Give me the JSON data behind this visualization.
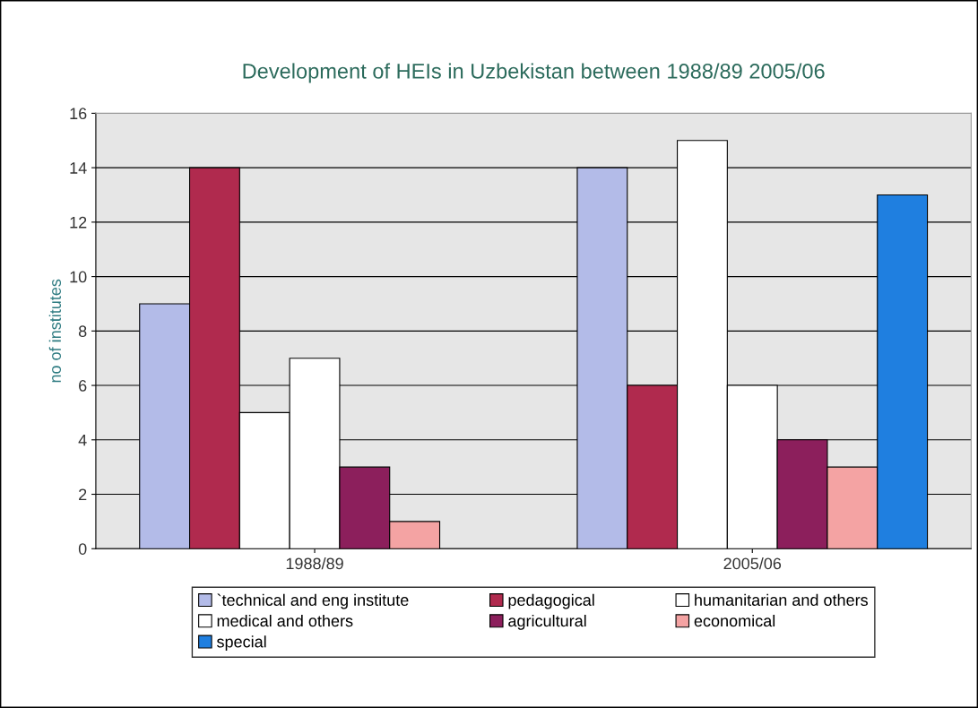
{
  "chart_data": {
    "type": "bar",
    "title": "Development of HEIs in Uzbekistan between 1988/89 2005/06",
    "ylabel": "no of institutes",
    "categories": [
      "1988/89",
      "2005/06"
    ],
    "series": [
      {
        "name": "`technical and eng institute",
        "color": "#b3bbe8",
        "values": [
          9,
          14
        ]
      },
      {
        "name": "pedagogical",
        "color": "#b02a4e",
        "values": [
          14,
          6
        ]
      },
      {
        "name": "humanitarian and others",
        "color": "#ffffff",
        "values": [
          5,
          15
        ]
      },
      {
        "name": "medical and others",
        "color": "#ffffff",
        "values": [
          7,
          6
        ]
      },
      {
        "name": "agricultural",
        "color": "#8c1f5c",
        "values": [
          3,
          4
        ]
      },
      {
        "name": "economical",
        "color": "#f4a3a3",
        "values": [
          1,
          3
        ]
      },
      {
        "name": "special",
        "color": "#1f7fe0",
        "values": [
          null,
          13
        ]
      }
    ],
    "ylim": [
      0,
      16
    ],
    "yticks": [
      0,
      2,
      4,
      6,
      8,
      10,
      12,
      14,
      16
    ],
    "grid": "y",
    "legend": "bottom"
  }
}
